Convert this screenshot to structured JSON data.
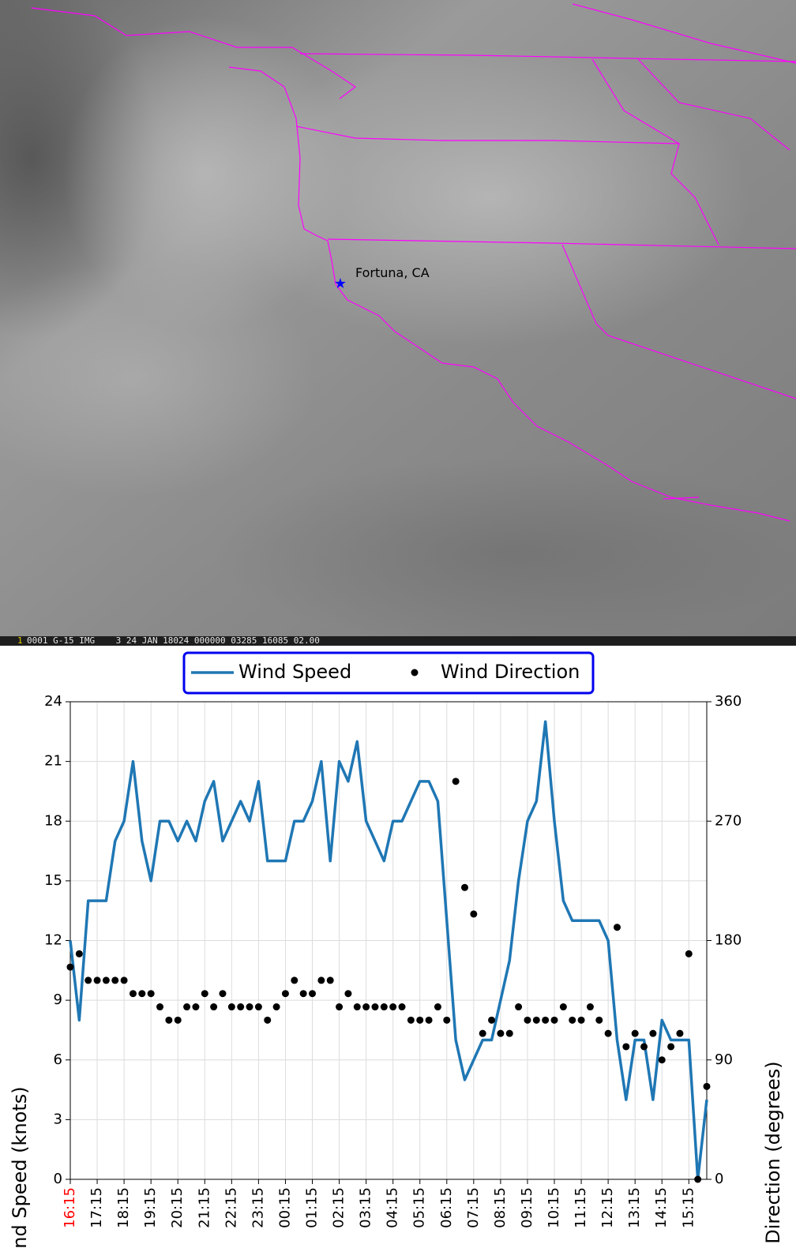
{
  "map": {
    "place_label": "Fortuna, CA",
    "status_index": "1",
    "status": "0001 G-15 IMG    3 24 JAN 18024 000000 03285 16085 02.00"
  },
  "chart_data": {
    "type": "line",
    "categories": [
      "16:15",
      null,
      null,
      "17:15",
      null,
      null,
      "18:15",
      null,
      null,
      "19:15",
      null,
      null,
      "20:15",
      null,
      null,
      "21:15",
      null,
      null,
      "22:15",
      null,
      null,
      "23:15",
      null,
      null,
      "00:15",
      null,
      null,
      "01:15",
      null,
      null,
      "02:15",
      null,
      null,
      "03:15",
      null,
      null,
      "04:15",
      null,
      null,
      "05:15",
      null,
      null,
      "06:15",
      null,
      null,
      "07:15",
      null,
      null,
      "08:15",
      null,
      null,
      "09:15",
      null,
      null,
      "10:15",
      null,
      null,
      "11:15",
      null,
      null,
      "12:15",
      null,
      null,
      "13:15",
      null,
      null,
      "14:15",
      null,
      null,
      "15:15",
      null,
      null
    ],
    "series": [
      {
        "name": "Wind Speed",
        "type": "line",
        "color": "#1f77b4",
        "values": [
          12,
          8,
          14,
          14,
          14,
          17,
          18,
          21,
          17,
          15,
          18,
          18,
          17,
          18,
          17,
          19,
          20,
          17,
          18,
          19,
          18,
          20,
          16,
          16,
          16,
          18,
          18,
          19,
          21,
          16,
          21,
          20,
          22,
          18,
          17,
          16,
          18,
          18,
          19,
          20,
          20,
          19,
          13,
          7,
          5,
          6,
          7,
          7,
          9,
          11,
          15,
          18,
          19,
          23,
          18,
          14,
          13,
          13,
          13,
          13,
          12,
          7,
          4,
          7,
          7,
          4,
          8,
          7,
          7,
          7,
          0,
          4
        ]
      },
      {
        "name": "Wind Direction",
        "type": "scatter",
        "color": "#000000",
        "axis": "y2",
        "values": [
          160,
          170,
          150,
          150,
          150,
          150,
          150,
          140,
          140,
          140,
          130,
          120,
          120,
          130,
          130,
          140,
          130,
          140,
          130,
          130,
          130,
          130,
          120,
          130,
          140,
          150,
          140,
          140,
          150,
          150,
          130,
          140,
          130,
          130,
          130,
          130,
          130,
          130,
          120,
          120,
          120,
          130,
          120,
          300,
          220,
          200,
          110,
          120,
          110,
          110,
          130,
          120,
          120,
          120,
          120,
          130,
          120,
          120,
          130,
          120,
          110,
          190,
          100,
          110,
          100,
          110,
          90,
          100,
          110,
          170,
          0,
          70
        ]
      }
    ],
    "ylabel": "Wind Speed (knots)",
    "y2label": "Wind Direction (degrees)",
    "ylim": [
      0,
      24
    ],
    "yticks": [
      0,
      3,
      6,
      9,
      12,
      15,
      18,
      21,
      24
    ],
    "y2lim": [
      0,
      360
    ],
    "y2ticks": [
      0,
      90,
      180,
      270,
      360
    ],
    "grid": true,
    "legend": "top"
  }
}
